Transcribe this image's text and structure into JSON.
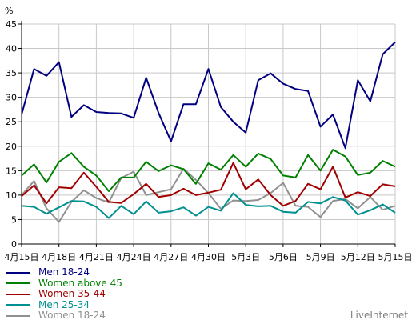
{
  "chart_data": {
    "type": "line",
    "unit": "%",
    "ylim": [
      0,
      45
    ],
    "yticks": [
      0,
      5,
      10,
      15,
      20,
      25,
      30,
      35,
      40,
      45
    ],
    "xtick_labels": [
      "4月15日",
      "4月18日",
      "4月21日",
      "4月24日",
      "4月27日",
      "4月30日",
      "5月3日",
      "5月6日",
      "5月9日",
      "5月12日",
      "5月15日"
    ],
    "grid": true,
    "legend_position": "bottom-left",
    "series": [
      {
        "name": "Men 18-24",
        "color": "#000080",
        "values": [
          26.5,
          35.8,
          34.4,
          37.2,
          26.0,
          28.4,
          27.0,
          26.8,
          26.7,
          25.8,
          34.0,
          26.8,
          21.0,
          28.6,
          28.6,
          35.8,
          28.0,
          25.0,
          22.8,
          33.5,
          34.9,
          32.8,
          31.7,
          31.3,
          24.0,
          26.5,
          19.6,
          33.5,
          29.2,
          38.8,
          41.3
        ]
      },
      {
        "name": "Women above 45",
        "color": "#008000",
        "values": [
          14.0,
          16.3,
          12.6,
          16.8,
          18.6,
          15.8,
          14.0,
          10.8,
          13.6,
          13.6,
          16.8,
          14.9,
          16.1,
          15.3,
          12.3,
          16.5,
          15.2,
          18.2,
          15.8,
          18.5,
          17.4,
          14.0,
          13.6,
          18.2,
          15.0,
          19.3,
          17.9,
          14.1,
          14.6,
          17.0,
          15.8
        ]
      },
      {
        "name": "Women 35-44",
        "color": "#a00000",
        "values": [
          9.8,
          12.0,
          8.3,
          11.6,
          11.4,
          14.6,
          11.7,
          8.6,
          8.4,
          10.2,
          12.3,
          9.6,
          10.0,
          11.3,
          10.0,
          10.5,
          11.1,
          16.6,
          11.2,
          13.2,
          10.0,
          7.8,
          8.8,
          12.3,
          11.2,
          15.8,
          9.5,
          10.6,
          9.8,
          12.2,
          11.8
        ]
      },
      {
        "name": "Men 25-34",
        "color": "#009090",
        "values": [
          7.8,
          7.6,
          6.2,
          7.5,
          8.8,
          8.7,
          7.6,
          5.3,
          7.8,
          6.1,
          8.7,
          6.4,
          6.7,
          7.5,
          5.8,
          7.6,
          6.8,
          10.4,
          8.0,
          7.7,
          7.8,
          6.6,
          6.4,
          8.6,
          8.3,
          9.6,
          8.9,
          6.0,
          6.9,
          8.1,
          6.4
        ]
      },
      {
        "name": "Women 18-24",
        "color": "#909090",
        "values": [
          10.0,
          12.9,
          7.3,
          4.5,
          8.6,
          11.0,
          9.4,
          8.5,
          13.5,
          14.8,
          10.0,
          10.6,
          11.2,
          15.4,
          13.1,
          10.4,
          7.2,
          8.9,
          8.8,
          9.0,
          10.4,
          12.5,
          7.8,
          7.6,
          5.5,
          8.8,
          9.2,
          7.3,
          9.6,
          7.0,
          7.8
        ]
      }
    ]
  },
  "watermark": "LiveInternet"
}
